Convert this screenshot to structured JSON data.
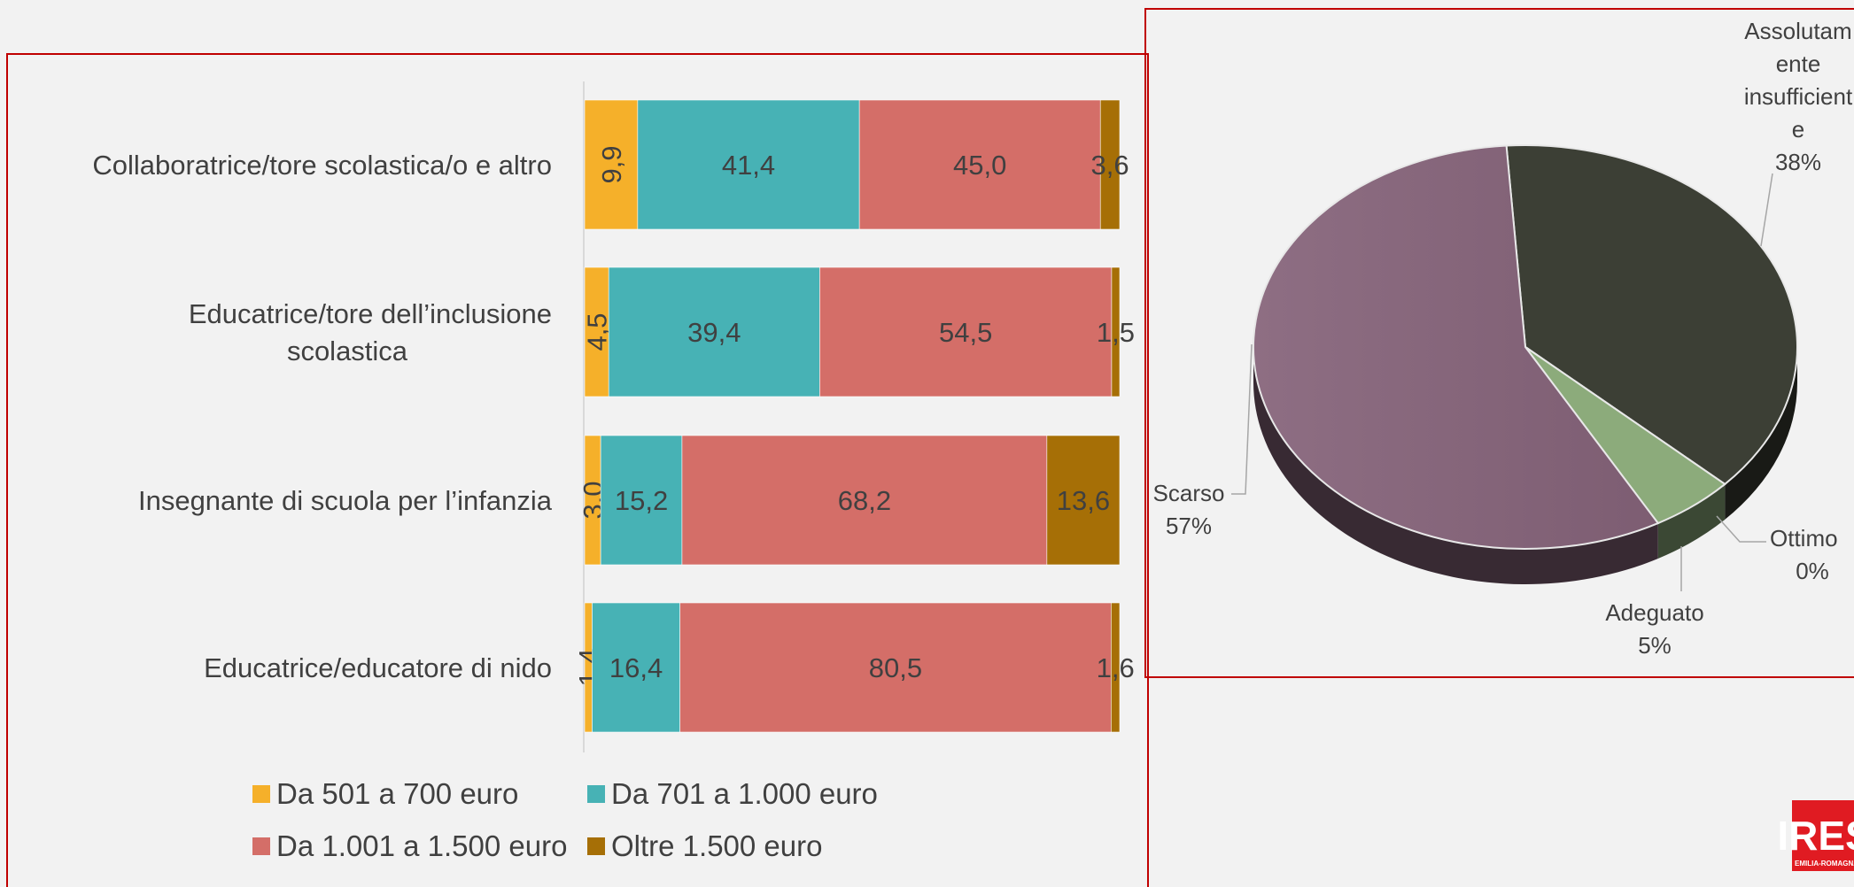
{
  "chart_data": [
    {
      "type": "bar",
      "orientation": "horizontal",
      "stacked": "percent",
      "categories": [
        "Collaboratrice/tore scolastica/o e altro",
        "Educatrice/tore dell’inclusione scolastica",
        "Insegnante di scuola per l’infanzia",
        "Educatrice/educatore di nido"
      ],
      "series": [
        {
          "name": "Da 501 a 700 euro",
          "color": "#f5b02a",
          "values": [
            9.9,
            4.5,
            3.0,
            1.4
          ],
          "labels": [
            "9,9",
            "4,5",
            "3,0",
            "1,4"
          ]
        },
        {
          "name": "Da 701 a 1.000 euro",
          "color": "#47b2b5",
          "values": [
            41.4,
            39.4,
            15.2,
            16.4
          ],
          "labels": [
            "41,4",
            "39,4",
            "15,2",
            "16,4"
          ]
        },
        {
          "name": "Da 1.001 a 1.500 euro",
          "color": "#d46e68",
          "values": [
            45.0,
            54.5,
            68.2,
            80.5
          ],
          "labels": [
            "45,0",
            "54,5",
            "68,2",
            "80,5"
          ]
        },
        {
          "name": "Oltre 1.500 euro",
          "color": "#a66f06",
          "values": [
            3.6,
            1.5,
            13.6,
            1.6
          ],
          "labels": [
            "3,6",
            "1,5",
            "13,6",
            "1,6"
          ]
        }
      ],
      "legend": "bottom"
    },
    {
      "type": "pie",
      "style": "3d",
      "slices": [
        {
          "label": "Assolutamente insufficiente",
          "value": 38,
          "pct_label": "38%",
          "color": "#3c3f35"
        },
        {
          "label": "Ottimo",
          "value": 0,
          "pct_label": "0%",
          "color": "#d4d4cc"
        },
        {
          "label": "Adeguato",
          "value": 5,
          "pct_label": "5%",
          "color": "#8cab7b"
        },
        {
          "label": "Scarso",
          "value": 57,
          "pct_label": "57%",
          "color": "#85657a"
        }
      ]
    }
  ],
  "logo": {
    "text": "IRES",
    "sub": "EMILIA-ROMAGNA"
  },
  "colors": {
    "background": "#f2f2f2",
    "frame": "#c00000",
    "text": "#404040"
  }
}
